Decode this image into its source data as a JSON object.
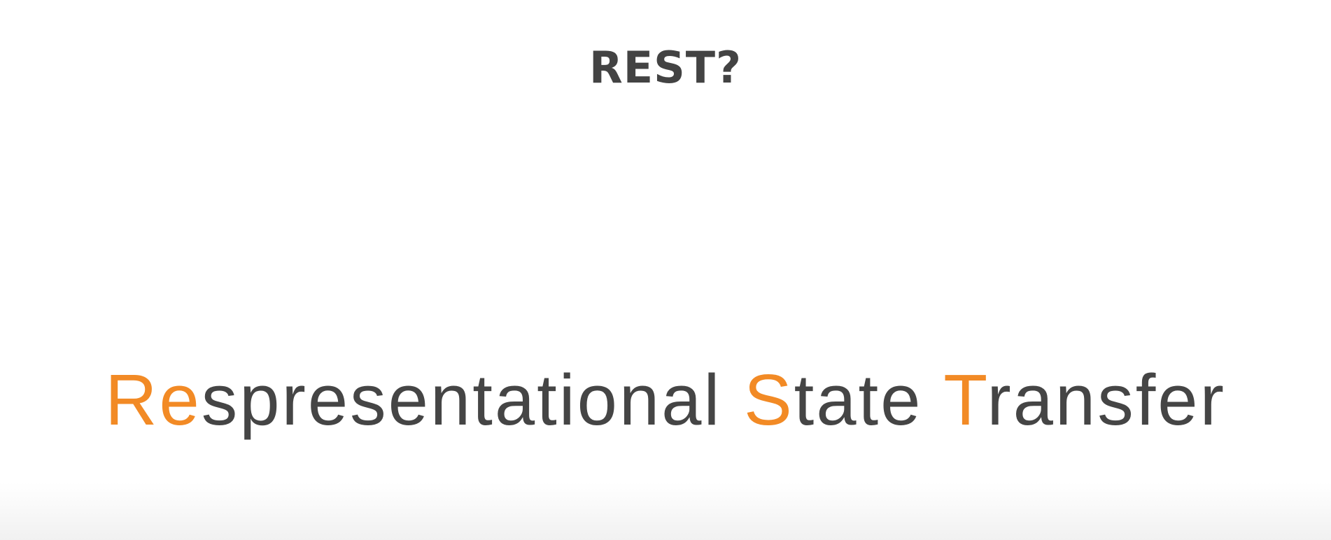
{
  "slide": {
    "title": "REST?",
    "expansion": [
      {
        "text": "Re",
        "accent": true
      },
      {
        "text": "spresentational ",
        "accent": false
      },
      {
        "text": "S",
        "accent": true
      },
      {
        "text": "tate ",
        "accent": false
      },
      {
        "text": "T",
        "accent": true
      },
      {
        "text": "ransfer",
        "accent": false
      }
    ]
  },
  "colors": {
    "accent": "#f28a25",
    "text": "#454545",
    "title": "#434343",
    "background": "#ffffff"
  }
}
